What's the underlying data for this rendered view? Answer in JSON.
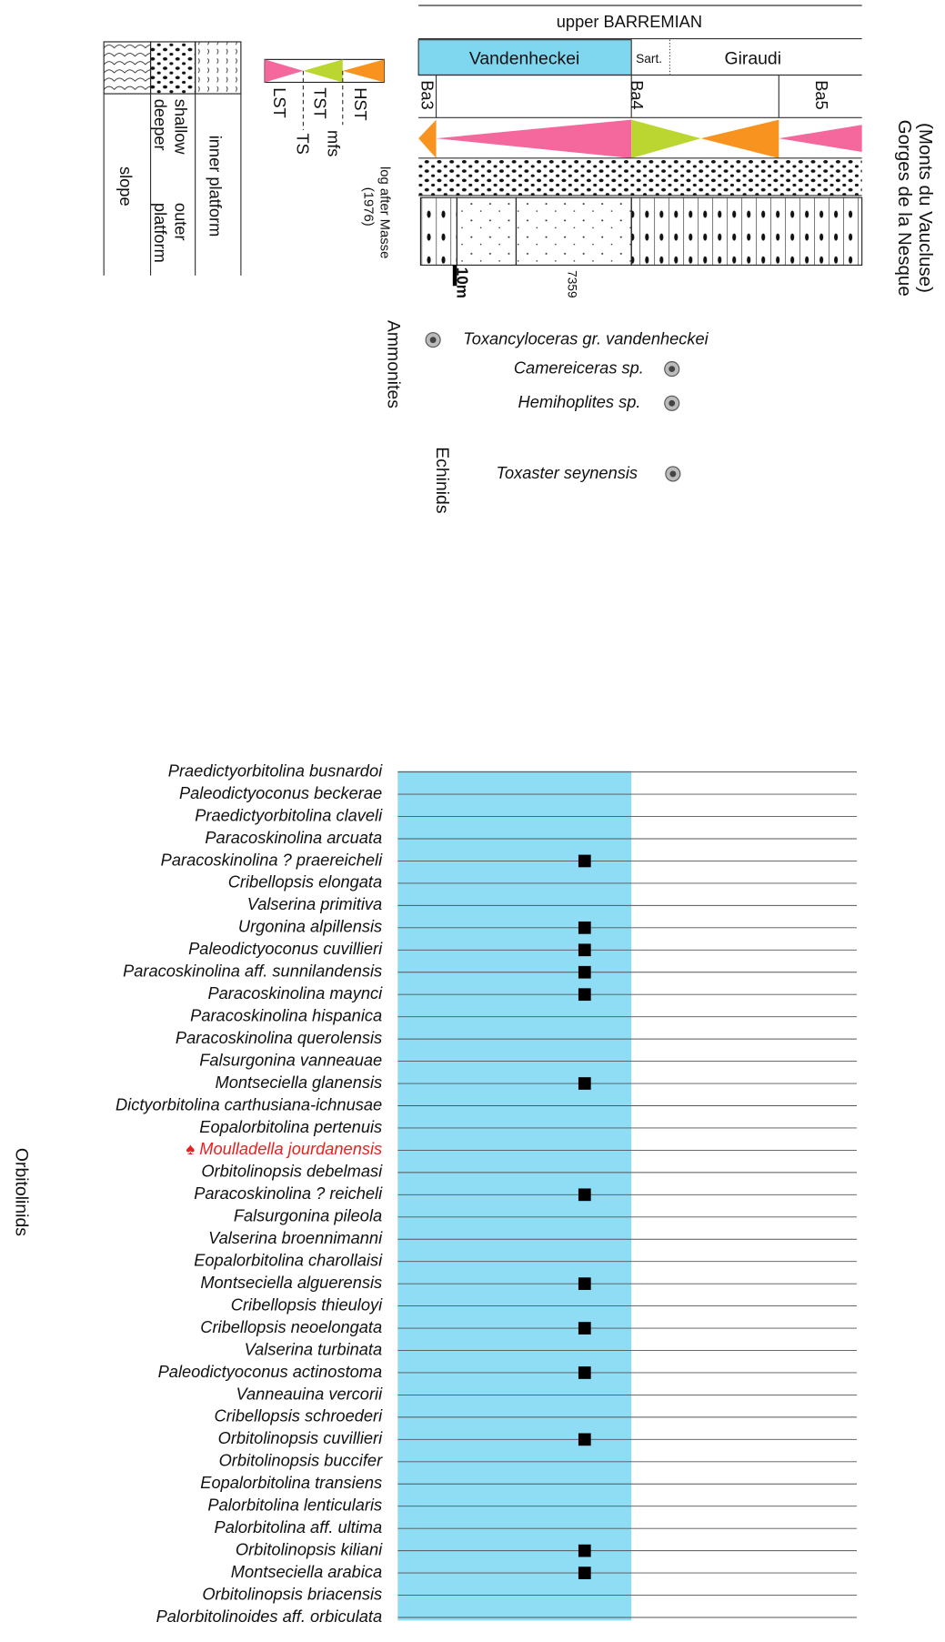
{
  "site": {
    "name": "Gorges de la Nesque",
    "region": "(Monts du Vaucluse)"
  },
  "legend": {
    "facies": [
      "slope",
      "deeper",
      "shallow",
      "outer",
      "platform",
      "inner platform"
    ],
    "tracts": [
      "LST",
      "TST",
      "HST"
    ],
    "surfaces": [
      "TS",
      "mfs"
    ]
  },
  "stage": "upper BARREMIAN",
  "zones": [
    "Vandenheckei",
    "Sart.",
    "Giraudi"
  ],
  "sequence_boundaries": [
    "Ba3",
    "Ba4",
    "Ba5"
  ],
  "log": {
    "source": "log after Masse",
    "year": "(1976)",
    "scale": "10m",
    "sample": "7359"
  },
  "ammonites": {
    "label": "Ammonites",
    "taxa": [
      "Toxancyloceras gr. vandenheckei",
      "Camereiceras sp.",
      "Hemihoplites sp."
    ]
  },
  "echinids": {
    "label": "Echinids",
    "taxa": [
      "Toxaster seynensis"
    ]
  },
  "orbitolinids": {
    "label": "Orbitolinids",
    "highlight_color": "#e8201f",
    "taxa": [
      {
        "name": "Praedictyorbitolina busnardoi",
        "present": false
      },
      {
        "name": "Paleodictyoconus beckerae",
        "present": false
      },
      {
        "name": "Praedictyorbitolina claveli",
        "present": false
      },
      {
        "name": "Paracoskinolina arcuata",
        "present": false
      },
      {
        "name": "Paracoskinolina ? praereicheli",
        "present": true
      },
      {
        "name": "Cribellopsis elongata",
        "present": false
      },
      {
        "name": "Valserina primitiva",
        "present": false
      },
      {
        "name": "Urgonina alpillensis",
        "present": true
      },
      {
        "name": "Paleodictyoconus cuvillieri",
        "present": true
      },
      {
        "name": "Paracoskinolina aff. sunnilandensis",
        "present": true
      },
      {
        "name": "Paracoskinolina maynci",
        "present": true
      },
      {
        "name": "Paracoskinolina hispanica",
        "present": false
      },
      {
        "name": "Paracoskinolina querolensis",
        "present": false
      },
      {
        "name": "Falsurgonina vanneauae",
        "present": false
      },
      {
        "name": "Montseciella glanensis",
        "present": true
      },
      {
        "name": "Dictyorbitolina carthusiana-ichnusae",
        "present": false
      },
      {
        "name": "Eopalorbitolina pertenuis",
        "present": false
      },
      {
        "name": "♠ Moulladella jourdanensis",
        "present": false,
        "highlight": true
      },
      {
        "name": "Orbitolinopsis debelmasi",
        "present": false
      },
      {
        "name": "Paracoskinolina ? reicheli",
        "present": true
      },
      {
        "name": "Falsurgonina pileola",
        "present": false
      },
      {
        "name": "Valserina broennimanni",
        "present": false
      },
      {
        "name": "Eopalorbitolina charollaisi",
        "present": false
      },
      {
        "name": "Montseciella alguerensis",
        "present": true
      },
      {
        "name": "Cribellopsis thieuloyi",
        "present": false
      },
      {
        "name": "Cribellopsis neoelongata",
        "present": true
      },
      {
        "name": "Valserina turbinata",
        "present": false
      },
      {
        "name": "Paleodictyoconus actinostoma",
        "present": true
      },
      {
        "name": "Vanneauina vercorii",
        "present": false
      },
      {
        "name": "Cribellopsis schroederi",
        "present": false
      },
      {
        "name": "Orbitolinopsis cuvillieri",
        "present": true
      },
      {
        "name": "Orbitolinopsis buccifer",
        "present": false
      },
      {
        "name": "Eopalorbitolina transiens",
        "present": false
      },
      {
        "name": "Palorbitolina lenticularis",
        "present": false
      },
      {
        "name": "Palorbitolina aff. ultima",
        "present": false
      },
      {
        "name": "Orbitolinopsis kiliani",
        "present": true
      },
      {
        "name": "Montseciella arabica",
        "present": true
      },
      {
        "name": "Orbitolinopsis briacensis",
        "present": false
      },
      {
        "name": "Palorbitolinoides aff. orbiculata",
        "present": false
      }
    ]
  }
}
